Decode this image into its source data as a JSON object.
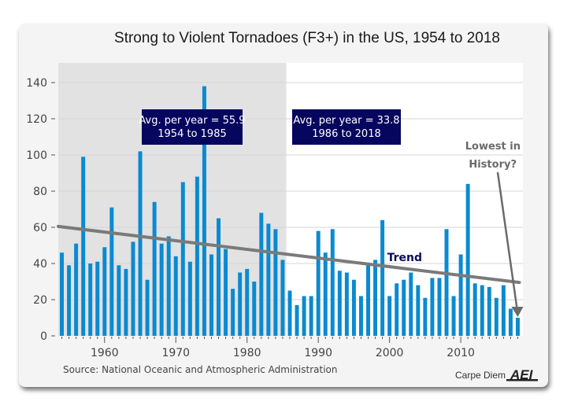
{
  "chart_data": {
    "type": "bar",
    "title": "Strong to Violent Tornadoes (F3+) in the US, 1954 to 2018",
    "xlabel": "",
    "ylabel": "",
    "ylim": [
      0,
      145
    ],
    "yticks": [
      0,
      20,
      40,
      60,
      80,
      100,
      120,
      140
    ],
    "xticks": [
      1960,
      1970,
      1980,
      1990,
      2000,
      2010
    ],
    "grid": true,
    "x": [
      1954,
      1955,
      1956,
      1957,
      1958,
      1959,
      1960,
      1961,
      1962,
      1963,
      1964,
      1965,
      1966,
      1967,
      1968,
      1969,
      1970,
      1971,
      1972,
      1973,
      1974,
      1975,
      1976,
      1977,
      1978,
      1979,
      1980,
      1981,
      1982,
      1983,
      1984,
      1985,
      1986,
      1987,
      1988,
      1989,
      1990,
      1991,
      1992,
      1993,
      1994,
      1995,
      1996,
      1997,
      1998,
      1999,
      2000,
      2001,
      2002,
      2003,
      2004,
      2005,
      2006,
      2007,
      2008,
      2009,
      2010,
      2011,
      2012,
      2013,
      2014,
      2015,
      2016,
      2017,
      2018
    ],
    "values": [
      46,
      39,
      51,
      99,
      40,
      41,
      49,
      71,
      39,
      37,
      52,
      102,
      31,
      74,
      51,
      55,
      44,
      85,
      41,
      88,
      138,
      45,
      65,
      48,
      26,
      35,
      37,
      30,
      68,
      62,
      59,
      42,
      25,
      17,
      22,
      22,
      58,
      46,
      59,
      36,
      35,
      31,
      22,
      39,
      42,
      64,
      22,
      29,
      31,
      35,
      28,
      21,
      32,
      32,
      59,
      22,
      45,
      84,
      29,
      28,
      27,
      21,
      28,
      15,
      10
    ],
    "bar_color": "#0a8ad0",
    "shaded_period": {
      "from": 1954,
      "to": 1985,
      "color": "#e2e2e2"
    },
    "trend": {
      "label": "Trend",
      "start": {
        "x": 1954,
        "y": 60.5
      },
      "end": {
        "x": 2018,
        "y": 29.5
      },
      "color": "#7a7a7a"
    },
    "annotations": [
      {
        "line1": "Avg. per year = 55.9",
        "line2": "1954 to 1985",
        "value": 55.9,
        "period": "1954 to 1985"
      },
      {
        "line1": "Avg. per year = 33.8",
        "line2": "1986 to 2018",
        "value": 33.8,
        "period": "1986 to 2018"
      }
    ],
    "callout": {
      "line1": "Lowest in",
      "line2": "History?",
      "points_to": 2018
    },
    "source": "Source: National Oceanic and Atmospheric Administration",
    "brand": "Carpe Diem",
    "logo": "AEI"
  }
}
